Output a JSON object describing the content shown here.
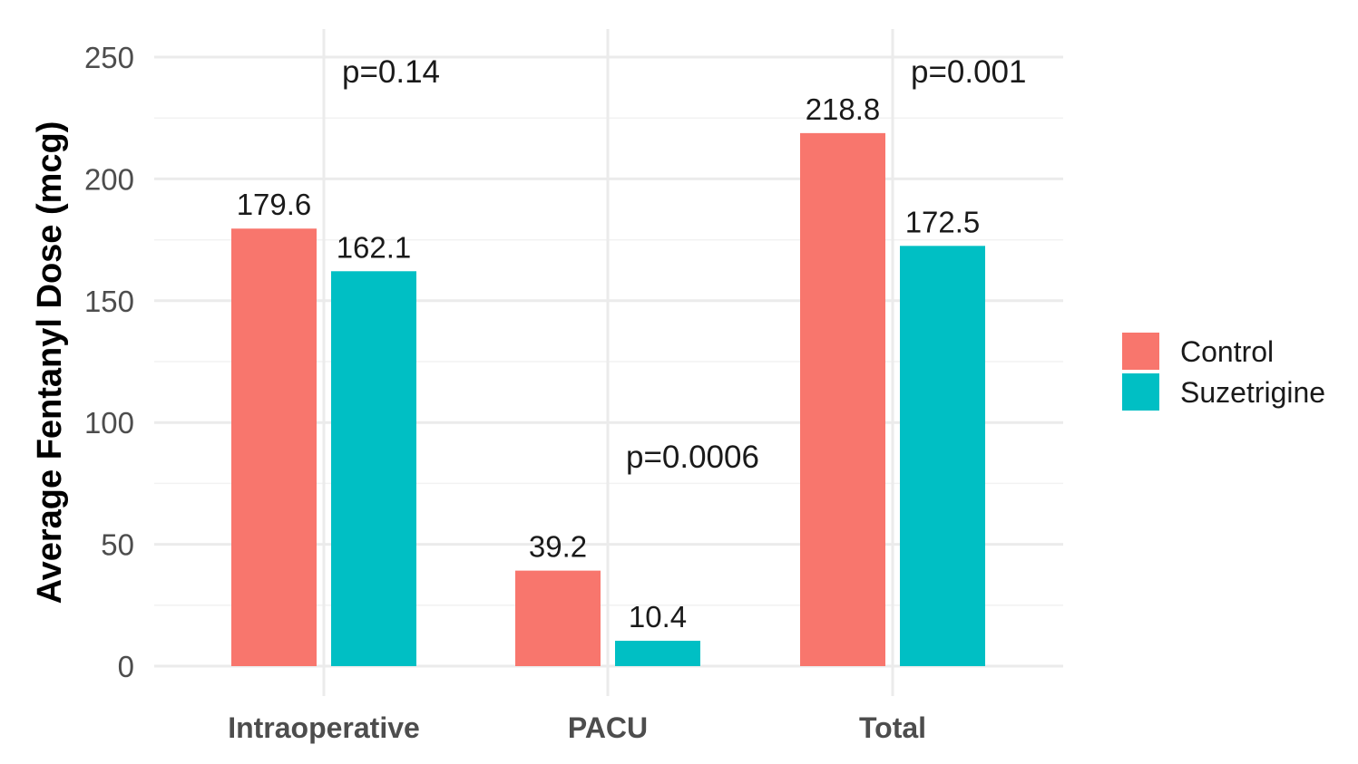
{
  "chart_data": {
    "type": "bar",
    "title": "",
    "xlabel": "",
    "ylabel": "Average Fentanyl Dose (mcg)",
    "ylim": [
      0,
      250
    ],
    "yticks": [
      0,
      50,
      100,
      150,
      200,
      250
    ],
    "categories": [
      "Intraoperative",
      "PACU",
      "Total"
    ],
    "series": [
      {
        "name": "Control",
        "color": "#F8766D",
        "values": [
          179.6,
          39.2,
          218.8
        ],
        "labels": [
          "179.6",
          "39.2",
          "218.8"
        ]
      },
      {
        "name": "Suzetrigine",
        "color": "#00BFC4",
        "values": [
          162.1,
          10.4,
          172.5
        ],
        "labels": [
          "162.1",
          "10.4",
          "172.5"
        ]
      }
    ],
    "annotations": [
      {
        "category": "Intraoperative",
        "text": "p=0.14",
        "y": 244
      },
      {
        "category": "PACU",
        "text": "p=0.0006",
        "y": 86
      },
      {
        "category": "Total",
        "text": "p=0.001",
        "y": 244
      }
    ],
    "grid": true,
    "legend_position": "right"
  }
}
